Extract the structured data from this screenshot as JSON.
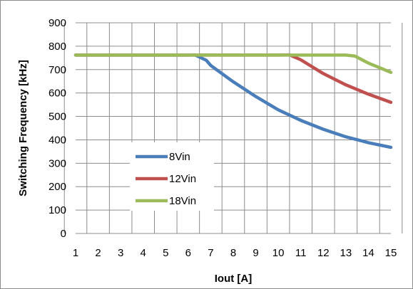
{
  "chart_data": {
    "type": "line",
    "xlabel": "Iout [A]",
    "ylabel": "Switching Frequency [kHz]",
    "xlim": [
      1,
      15
    ],
    "ylim": [
      0,
      900
    ],
    "x_ticks": [
      "1",
      "2",
      "3",
      "4",
      "5",
      "6",
      "7",
      "8",
      "9",
      "10",
      "11",
      "12",
      "13",
      "14",
      "15"
    ],
    "y_ticks": [
      "0",
      "100",
      "200",
      "300",
      "400",
      "500",
      "600",
      "700",
      "800",
      "900"
    ],
    "grid": true,
    "legend_position": "left-bottom (inside)",
    "series": [
      {
        "name": "8Vin",
        "color": "#4a7ebb",
        "x": [
          1,
          2,
          3,
          4,
          5,
          6,
          6.3,
          6.8,
          7,
          8,
          9,
          10,
          11,
          12,
          13,
          14,
          15
        ],
        "y": [
          762,
          762,
          762,
          762,
          762,
          762,
          763,
          740,
          718,
          648,
          585,
          528,
          483,
          445,
          413,
          388,
          368
        ]
      },
      {
        "name": "12Vin",
        "color": "#c0504d",
        "x": [
          1,
          2,
          3,
          4,
          5,
          6,
          7,
          8,
          9,
          10,
          10.5,
          11,
          12,
          13,
          14,
          15
        ],
        "y": [
          762,
          762,
          762,
          762,
          762,
          762,
          762,
          762,
          762,
          762,
          763,
          742,
          683,
          635,
          595,
          560
        ]
      },
      {
        "name": "18Vin",
        "color": "#9bbb59",
        "x": [
          1,
          2,
          3,
          4,
          5,
          6,
          7,
          8,
          9,
          10,
          11,
          12,
          13,
          13.4,
          14,
          15
        ],
        "y": [
          762,
          762,
          762,
          762,
          762,
          762,
          762,
          762,
          762,
          762,
          762,
          762,
          762,
          758,
          728,
          688
        ]
      }
    ]
  }
}
